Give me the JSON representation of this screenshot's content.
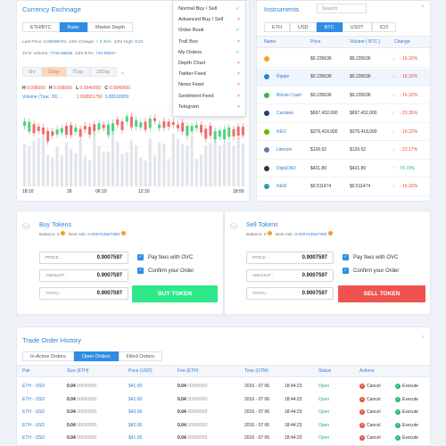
{
  "exchange": {
    "title": "Currency Exchnage",
    "tabs": [
      "ETH/BTC",
      "Basic",
      "Market Depth"
    ],
    "last_price_label": "Last Price:",
    "last_price": "0.09599701",
    "change_label": "24hr Change:",
    "change": "+ 2.35%",
    "high_label": "24hr High:",
    "high": "0.01",
    "volume_label": "24 hr Volume:",
    "volume": "7749.55596",
    "eth_label": "24hr ETH:",
    "eth": "733.99047",
    "ranges": [
      "6hr",
      "1Day",
      "7Day",
      "15Day"
    ],
    "ohlc": [
      {
        "k": "H",
        "v": "0.098000"
      },
      {
        "k": "H",
        "v": "0.098000"
      },
      {
        "k": "L",
        "v": "0.0940000"
      },
      {
        "k": "C",
        "v": "0.0940000"
      }
    ],
    "volume_legend": "Volume (True, 20)",
    "vol_v1": "1.008551756",
    "vol_v2": "5.85518959",
    "x_ticks": [
      "18:10",
      "26",
      "06:10",
      "12:10",
      "18:50"
    ]
  },
  "menu": {
    "items": [
      {
        "label": "Normal Buy / Sell",
        "state": "check"
      },
      {
        "label": "Advanced Buy / Sell",
        "state": "x"
      },
      {
        "label": "Order Book",
        "state": "check"
      },
      {
        "label": "Troll Box",
        "state": "x"
      },
      {
        "label": "My Orders",
        "state": "check"
      },
      {
        "label": "Depth Chart",
        "state": "x"
      },
      {
        "label": "Twitter Feed",
        "state": "x"
      },
      {
        "label": "News Feed",
        "state": "x"
      },
      {
        "label": "Sentiment Feed",
        "state": "x"
      },
      {
        "label": "Telegram",
        "state": "x"
      }
    ]
  },
  "instruments": {
    "title": "Instruments",
    "search_placeholder": "Search",
    "tabs": [
      "ETH",
      "USD",
      "BTC",
      "USDT",
      "ICO"
    ],
    "headers": [
      "Name",
      "Price",
      "Volume ( BTC )",
      "Change"
    ],
    "rows": [
      {
        "name": "",
        "price": "$0.235636",
        "volume": "$0.235636",
        "change": "- 16.32%",
        "up": false,
        "color": "#f7a41d"
      },
      {
        "name": "Ripple",
        "price": "$0.235636",
        "volume": "$0.235636",
        "change": "- 16.32%",
        "up": false,
        "color": "#2f7fd3"
      },
      {
        "name": "Bitcoin Cash",
        "price": "$0.235636",
        "volume": "$0.235636",
        "change": "- 16.32%",
        "up": false,
        "color": "#3ab54a"
      },
      {
        "name": "Cardano",
        "price": "$697,432,000",
        "volume": "$697,432,000",
        "change": "- 23.36%",
        "up": false,
        "color": "#1a3e7a"
      },
      {
        "name": "NEO",
        "price": "$376,418,000",
        "volume": "$376,418,000",
        "change": "- 16.32%",
        "up": false,
        "color": "#58bf00"
      },
      {
        "name": "Litecoin",
        "price": "$126.52",
        "volume": "$126.52",
        "change": "- 22.17%",
        "up": false,
        "color": "#5a7ab4"
      },
      {
        "name": "DigixDAO",
        "price": "$431.89",
        "volume": "$431.89",
        "change": "74.79%",
        "up": true,
        "color": "#333333"
      },
      {
        "name": "NEM",
        "price": "$0.511474",
        "volume": "$0.511474",
        "change": "- 16.32%",
        "up": false,
        "color": "#2d9fb8"
      }
    ]
  },
  "buy": {
    "title": "Buy Tokens",
    "balance_label": "Balance:",
    "balance": "0",
    "best_ask_label": "Best Ask:",
    "best_ask": "0.000743587380",
    "price_label": "PRICE :",
    "price": "0.9007597",
    "amount_label": "AMOUNT :",
    "amount": "0.9007597",
    "total_label": "TOTAL :",
    "total": "0.9007597",
    "opt1": "Pay fees with OVC",
    "opt2": "Confirm your Order",
    "button": "BUY TOKEN"
  },
  "sell": {
    "title": "Sell Tokens",
    "balance_label": "Balance:",
    "balance": "0",
    "best_ask_label": "Best Ask:",
    "best_ask": "0.000743587380",
    "price_label": "PRICE :",
    "price": "0.9007597",
    "amount_label": "AMOUNT :",
    "amount": "0.9007597",
    "total_label": "TOTAL :",
    "total": "0.9007597",
    "opt1": "Pay fees with OVC",
    "opt2": "Confirm your Order",
    "button": "SELL TOKEN"
  },
  "orders": {
    "title": "Trade Order History",
    "tabs": [
      "In-Active Orders",
      "Open Orders",
      "Filled Orders"
    ],
    "headers": [
      "Pair",
      "Size (ETH)",
      "Price (USD)",
      "Fee (ETH)",
      "Time (GTM)",
      "Status",
      "Actions"
    ],
    "rows": [
      {
        "pair": "ETH - USD",
        "size_b": "0.04",
        "size_z": "00000000",
        "price": "$41.00",
        "fee_b": "0.04",
        "fee_z": "00000000",
        "date": "2016 - 07 06",
        "time": "18:44:23",
        "status": "Open",
        "cancel": "Cancel",
        "execute": "Execute"
      },
      {
        "pair": "ETH - USD",
        "size_b": "0.04",
        "size_z": "00000000",
        "price": "$41.00",
        "fee_b": "0.04",
        "fee_z": "00000000",
        "date": "2016 - 07 06",
        "time": "18:44:23",
        "status": "Open",
        "cancel": "Cancel",
        "execute": "Execute"
      },
      {
        "pair": "ETH - USD",
        "size_b": "0.04",
        "size_z": "00000000",
        "price": "$43.00",
        "fee_b": "0.04",
        "fee_z": "00000000",
        "date": "2016 - 07 06",
        "time": "18:44:23",
        "status": "Open",
        "cancel": "Cancel",
        "execute": "Execute"
      },
      {
        "pair": "ETH - USD",
        "size_b": "0.04",
        "size_z": "00000000",
        "price": "$42.00",
        "fee_b": "0.04",
        "fee_z": "00000000",
        "date": "2016 - 07 06",
        "time": "18:44:23",
        "status": "Open",
        "cancel": "Cancel",
        "execute": "Execute"
      },
      {
        "pair": "ETH - USD",
        "size_b": "0.04",
        "size_z": "00000000",
        "price": "$41.00",
        "fee_b": "0.04",
        "fee_z": "00000000",
        "date": "2016 - 07 06",
        "time": "18:44:23",
        "status": "Open",
        "cancel": "Cancel",
        "execute": "Execute"
      }
    ]
  },
  "colors": {
    "accent": "#2f8de4",
    "buy": "#2ee88a",
    "sell": "#ef5350",
    "up": "#2bb673",
    "down": "#e74c3c"
  }
}
